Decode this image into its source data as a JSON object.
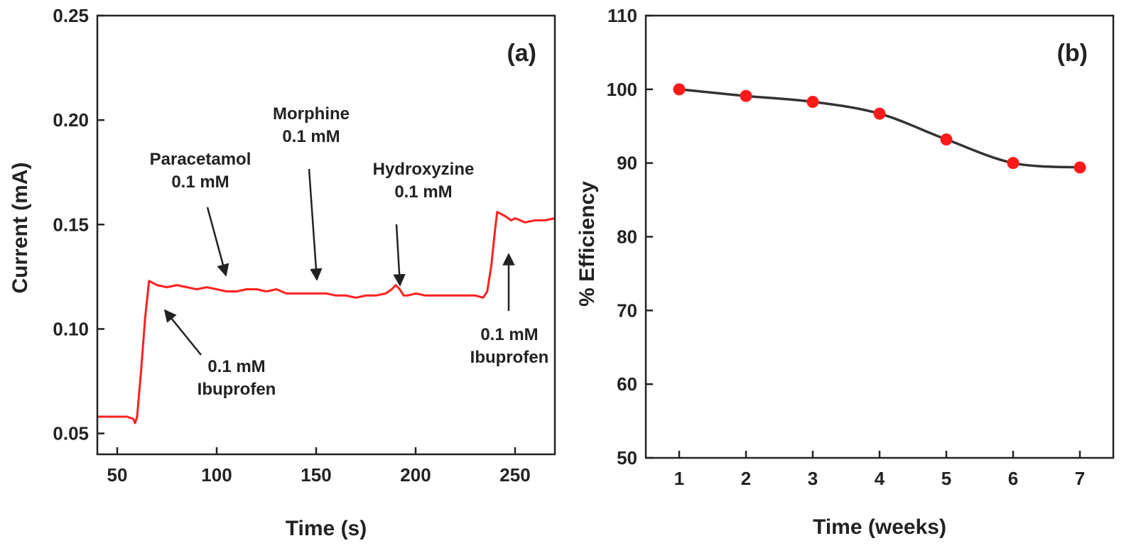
{
  "chart_data": [
    {
      "type": "line",
      "panel_label": "(a)",
      "xlabel": "Time (s)",
      "ylabel": "Current (mA)",
      "xlim": [
        40,
        270
      ],
      "ylim": [
        0.04,
        0.25
      ],
      "xticks": [
        50,
        100,
        150,
        200,
        250
      ],
      "xtick_labels": [
        "50",
        "100",
        "150",
        "200",
        "250"
      ],
      "yticks": [
        0.05,
        0.1,
        0.15,
        0.2,
        0.25
      ],
      "ytick_labels": [
        "0.05",
        "0.10",
        "0.15",
        "0.20",
        "0.25"
      ],
      "grid": false,
      "line_color": "#ff2020",
      "series": [
        {
          "x": [
            40,
            45,
            50,
            55,
            58,
            59,
            60,
            62,
            64,
            66,
            68,
            70,
            75,
            80,
            85,
            90,
            95,
            100,
            105,
            110,
            115,
            120,
            125,
            130,
            135,
            140,
            145,
            150,
            155,
            160,
            165,
            170,
            175,
            180,
            185,
            188,
            190,
            192,
            194,
            196,
            200,
            205,
            210,
            215,
            220,
            225,
            230,
            234,
            236,
            238,
            240,
            241,
            243,
            245,
            248,
            250,
            255,
            260,
            265,
            270
          ],
          "y": [
            0.058,
            0.058,
            0.058,
            0.058,
            0.057,
            0.055,
            0.058,
            0.08,
            0.105,
            0.123,
            0.122,
            0.121,
            0.12,
            0.121,
            0.12,
            0.119,
            0.12,
            0.119,
            0.118,
            0.118,
            0.119,
            0.119,
            0.118,
            0.119,
            0.117,
            0.117,
            0.117,
            0.117,
            0.117,
            0.116,
            0.116,
            0.115,
            0.116,
            0.116,
            0.117,
            0.119,
            0.121,
            0.119,
            0.116,
            0.116,
            0.117,
            0.116,
            0.116,
            0.116,
            0.116,
            0.116,
            0.116,
            0.115,
            0.118,
            0.13,
            0.148,
            0.156,
            0.155,
            0.154,
            0.152,
            0.153,
            0.151,
            0.152,
            0.152,
            0.153
          ]
        }
      ],
      "annotations": [
        {
          "lines": [
            "Paracetamol",
            "0.1 mM"
          ],
          "x": 105,
          "y": 0.119,
          "direction": "down"
        },
        {
          "lines": [
            "Morphine",
            "0.1 mM"
          ],
          "x": 149,
          "y": 0.117,
          "direction": "down"
        },
        {
          "lines": [
            "Hydroxyzine",
            "0.1 mM"
          ],
          "x": 191,
          "y": 0.118,
          "direction": "down"
        },
        {
          "lines": [
            "0.1 mM",
            "Ibuprofen"
          ],
          "x": 69,
          "y": 0.109,
          "direction": "up"
        },
        {
          "lines": [
            "0.1 mM",
            "Ibuprofen"
          ],
          "x": 247,
          "y": 0.149,
          "direction": "up"
        }
      ]
    },
    {
      "type": "line",
      "panel_label": "(b)",
      "xlabel": "Time (weeks)",
      "ylabel": "% Efficiency",
      "xlim": [
        0.5,
        7.5
      ],
      "ylim": [
        50,
        110
      ],
      "xticks": [
        1,
        2,
        3,
        4,
        5,
        6,
        7
      ],
      "xtick_labels": [
        "1",
        "2",
        "3",
        "4",
        "5",
        "6",
        "7"
      ],
      "yticks": [
        50,
        60,
        70,
        80,
        90,
        100,
        110
      ],
      "ytick_labels": [
        "50",
        "60",
        "70",
        "80",
        "90",
        "100",
        "110"
      ],
      "grid": false,
      "line_color": "#333333",
      "marker_color": "#ff1a1a",
      "series": [
        {
          "x": [
            1,
            2,
            3,
            4,
            5,
            6,
            7
          ],
          "y": [
            100.0,
            99.1,
            98.3,
            96.7,
            93.2,
            90.0,
            89.4
          ]
        }
      ]
    }
  ]
}
